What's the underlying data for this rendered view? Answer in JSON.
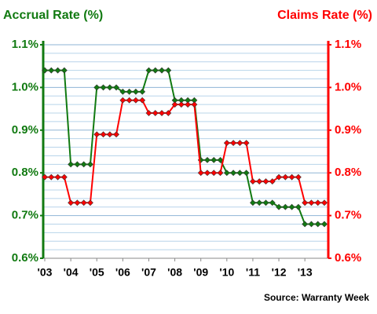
{
  "chart_data": {
    "type": "line",
    "title": "Accrual Rate (%)",
    "y2_title": "Claims Rate (%)",
    "source": "Source: Warranty Week",
    "categories": [
      "'03",
      null,
      null,
      null,
      "'04",
      null,
      null,
      null,
      "'05",
      null,
      null,
      null,
      "'06",
      null,
      null,
      null,
      "'07",
      null,
      null,
      null,
      "'08",
      null,
      null,
      null,
      "'09",
      null,
      null,
      null,
      "'10",
      null,
      null,
      null,
      "'11",
      null,
      null,
      null,
      "'12",
      null,
      null,
      null,
      "'13",
      null,
      null,
      null
    ],
    "series": [
      {
        "name": "Accrual Rate (%)",
        "color": "#117a11",
        "axis": "y",
        "values": [
          1.04,
          1.04,
          1.04,
          1.04,
          0.82,
          0.82,
          0.82,
          0.82,
          1.0,
          1.0,
          1.0,
          1.0,
          0.99,
          0.99,
          0.99,
          0.99,
          1.04,
          1.04,
          1.04,
          1.04,
          0.97,
          0.97,
          0.97,
          0.97,
          0.83,
          0.83,
          0.83,
          0.83,
          0.8,
          0.8,
          0.8,
          0.8,
          0.73,
          0.73,
          0.73,
          0.73,
          0.72,
          0.72,
          0.72,
          0.72,
          0.68,
          0.68,
          0.68,
          0.68
        ]
      },
      {
        "name": "Claims Rate (%)",
        "color": "#ff0000",
        "axis": "y2",
        "values": [
          0.79,
          0.79,
          0.79,
          0.79,
          0.73,
          0.73,
          0.73,
          0.73,
          0.89,
          0.89,
          0.89,
          0.89,
          0.97,
          0.97,
          0.97,
          0.97,
          0.94,
          0.94,
          0.94,
          0.94,
          0.96,
          0.96,
          0.96,
          0.96,
          0.8,
          0.8,
          0.8,
          0.8,
          0.87,
          0.87,
          0.87,
          0.87,
          0.78,
          0.78,
          0.78,
          0.78,
          0.79,
          0.79,
          0.79,
          0.79,
          0.73,
          0.73,
          0.73,
          0.73
        ]
      }
    ],
    "ylim": [
      0.6,
      1.1
    ],
    "yticks": [
      {
        "value": 0.6,
        "label": "0.6%"
      },
      {
        "value": 0.7,
        "label": "0.7%"
      },
      {
        "value": 0.8,
        "label": "0.8%"
      },
      {
        "value": 0.9,
        "label": "0.9%"
      },
      {
        "value": 1.0,
        "label": "1.0%"
      },
      {
        "value": 1.1,
        "label": "1.1%"
      }
    ],
    "y2lim": [
      0.6,
      1.1
    ],
    "y2ticks": [
      {
        "value": 0.6,
        "label": "0.6%"
      },
      {
        "value": 0.7,
        "label": "0.7%"
      },
      {
        "value": 0.8,
        "label": "0.8%"
      },
      {
        "value": 0.9,
        "label": "0.9%"
      },
      {
        "value": 1.0,
        "label": "1.0%"
      },
      {
        "value": 1.1,
        "label": "1.1%"
      }
    ],
    "y_minor_ticks": [
      0.62,
      0.64,
      0.66,
      0.68,
      0.72,
      0.74,
      0.76,
      0.78,
      0.82,
      0.84,
      0.86,
      0.88,
      0.92,
      0.94,
      0.96,
      0.98,
      1.02,
      1.04,
      1.06,
      1.08
    ],
    "grid": true
  }
}
